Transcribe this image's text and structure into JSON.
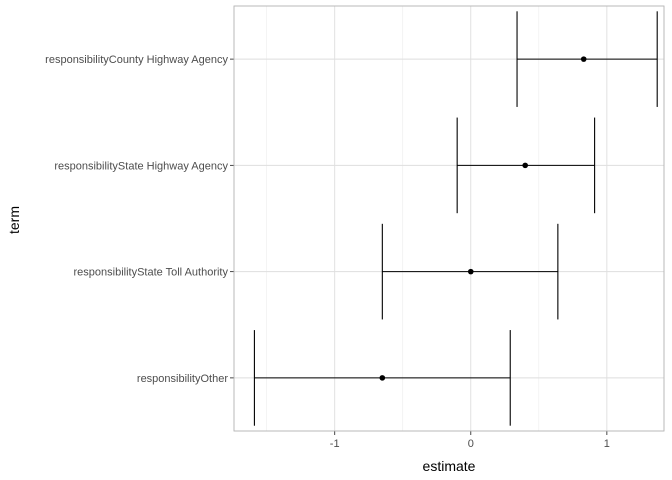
{
  "chart_data": {
    "type": "scatter",
    "style": "coefficient plot (point estimate with error bars)",
    "xlabel": "estimate",
    "ylabel": "term",
    "xlim": [
      -1.74,
      1.42
    ],
    "x_ticks": [
      -1,
      0,
      1
    ],
    "x_tick_labels": [
      "-1",
      "0",
      "1"
    ],
    "grid": true,
    "legend": "none",
    "colors": {
      "point": "#000000",
      "errorbar": "#000000",
      "grid": "#dedede",
      "border": "#b3b3b3"
    },
    "terms": [
      {
        "label": "responsibilityCounty Highway Agency",
        "estimate": 0.83,
        "conf_low": 0.34,
        "conf_high": 1.37
      },
      {
        "label": "responsibilityState Highway Agency",
        "estimate": 0.4,
        "conf_low": -0.1,
        "conf_high": 0.91
      },
      {
        "label": "responsibilityState Toll Authority",
        "estimate": 0.0,
        "conf_low": -0.65,
        "conf_high": 0.64
      },
      {
        "label": "responsibilityOther",
        "estimate": -0.65,
        "conf_low": -1.59,
        "conf_high": 0.29
      }
    ]
  }
}
